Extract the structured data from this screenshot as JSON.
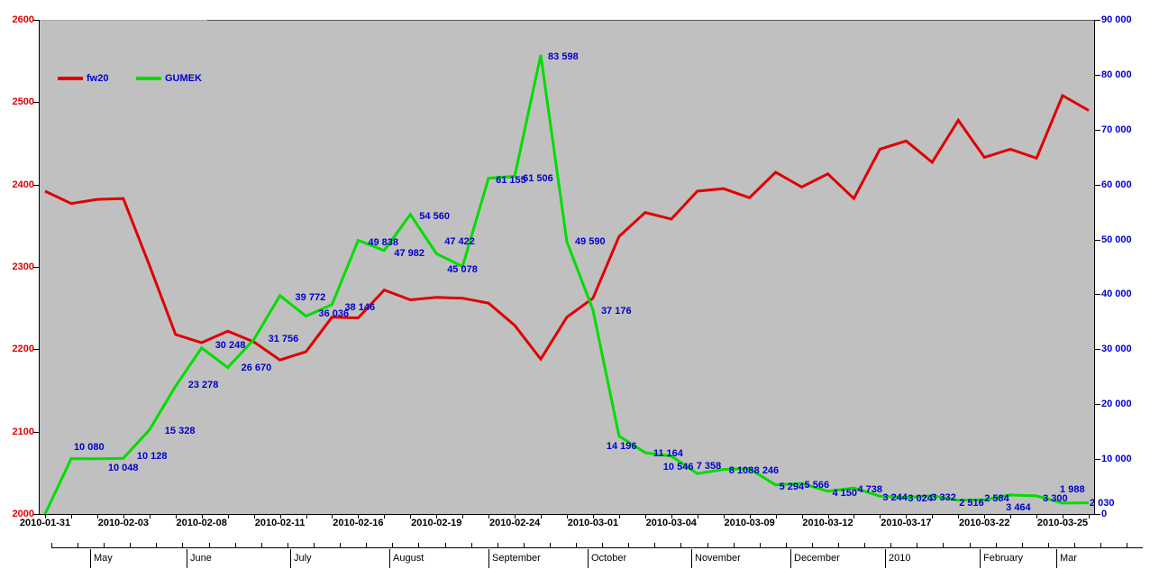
{
  "legend": [
    {
      "label": "fw20",
      "color": "#e00000"
    },
    {
      "label": "GUMEK",
      "color": "#00dd00"
    }
  ],
  "chart_data": {
    "type": "line",
    "plot_background": "#c0c0c0",
    "grid": false,
    "legend_position": "top-left-inside",
    "x_tick_labels": [
      "2010-01-31",
      "2010-02-03",
      "2010-02-08",
      "2010-02-11",
      "2010-02-16",
      "2010-02-19",
      "2010-02-24",
      "2010-03-01",
      "2010-03-04",
      "2010-03-09",
      "2010-03-12",
      "2010-03-17",
      "2010-03-22",
      "2010-03-25"
    ],
    "points_per_x_label": 3,
    "left_axis": {
      "label_color": "#e00000",
      "min": 2000,
      "max": 2600,
      "step": 100,
      "tick_labels": [
        "2600",
        "2500",
        "2400",
        "2300",
        "2200",
        "2100",
        "2000"
      ]
    },
    "right_axis": {
      "label_color": "#0000cc",
      "min": 0,
      "max": 90000,
      "step": 10000,
      "tick_labels": [
        "90 000",
        "80 000",
        "70 000",
        "60 000",
        "50 000",
        "40 000",
        "30 000",
        "20 000",
        "10 000",
        "0"
      ]
    },
    "series": [
      {
        "name": "fw20",
        "axis": "left",
        "color": "#e00000",
        "values": [
          2392,
          2377,
          2382,
          2383,
          2302,
          2218,
          2208,
          2222,
          2209,
          2187,
          2197,
          2239,
          2238,
          2272,
          2260,
          2263,
          2262,
          2256,
          2229,
          2188,
          2239,
          2262,
          2337,
          2366,
          2358,
          2392,
          2395,
          2384,
          2415,
          2397,
          2413,
          2383,
          2443,
          2453,
          2427,
          2478,
          2433,
          2443,
          2432,
          2508,
          2490
        ]
      },
      {
        "name": "GUMEK",
        "axis": "right",
        "color": "#00dd00",
        "point_label_color": "#0000cc",
        "values": [
          0,
          10080,
          10048,
          10128,
          15328,
          23278,
          30248,
          26670,
          31756,
          39772,
          36036,
          38146,
          49838,
          47982,
          54560,
          47422,
          45078,
          61155,
          61506,
          83598,
          49590,
          37176,
          14196,
          11164,
          10546,
          7358,
          8108,
          8246,
          5294,
          5566,
          4150,
          4738,
          3244,
          3024,
          3332,
          2516,
          2584,
          3464,
          3300,
          1988,
          2030
        ],
        "point_labels": [
          null,
          "10 080",
          "10 048",
          "10 128",
          "15 328",
          "23 278",
          "30 248",
          "26 670",
          "31 756",
          "39 772",
          "36 036",
          "38 146",
          "49 838",
          "47 982",
          "54 560",
          "47 422",
          "45 078",
          "61 155",
          "61 506",
          "83 598",
          "49 590",
          "37 176",
          "14 196",
          "11 164",
          "10 546",
          "7 358",
          "8 108",
          "8 246",
          "5 294",
          "5 566",
          "4 150",
          "4 738",
          "3 244",
          "3 024",
          "3 332",
          "2 516",
          "2 584",
          "3 464",
          "3 300",
          "1 988",
          "2 030"
        ]
      }
    ],
    "timeline_months": [
      "May",
      "June",
      "July",
      "August",
      "September",
      "October",
      "November",
      "December",
      "2010",
      "February",
      "Mar"
    ]
  }
}
